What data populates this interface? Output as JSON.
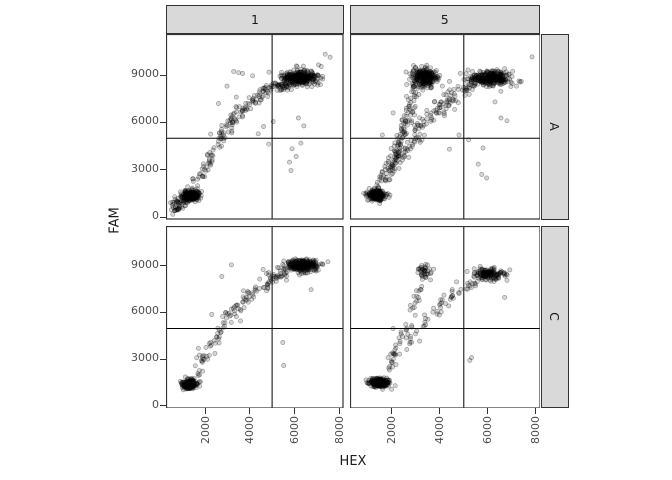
{
  "chart_data": {
    "type": "scatter",
    "title": "",
    "xlabel": "HEX",
    "ylabel": "FAM",
    "x_domain": [
      250,
      8200
    ],
    "y_domain": [
      -150,
      11600
    ],
    "x_ticks": [
      2000,
      4000,
      6000,
      8000
    ],
    "y_ticks": [
      0,
      3000,
      6000,
      9000
    ],
    "col_facets": [
      "1",
      "5"
    ],
    "row_facets": [
      "A",
      "C"
    ],
    "threshold_x": 5000,
    "threshold_y": 5000,
    "grid": "off",
    "legend": "none",
    "description": "ddPCR-style 2D amplitude scatter: FAM vs HEX fluorescence, faceted by well column (1,5) and row (A,C), with classification threshold crosshairs at HEX=5000 and FAM=5000",
    "panels": [
      {
        "col": "1",
        "row": "A",
        "seed": 11,
        "clusters": [
          {
            "cx": 1350,
            "cy": 1350,
            "sx": 170,
            "sy": 150,
            "n": 240
          },
          {
            "cx": 6250,
            "cy": 8850,
            "sx": 400,
            "sy": 230,
            "n": 320
          }
        ],
        "arcs": [
          {
            "path": [
              [
                560,
                520
              ],
              [
                900,
                900
              ],
              [
                1350,
                1500
              ],
              [
                2000,
                3200
              ],
              [
                2600,
                4800
              ],
              [
                3200,
                6100
              ],
              [
                3900,
                7100
              ],
              [
                4600,
                7900
              ],
              [
                5300,
                8350
              ],
              [
                5900,
                8650
              ]
            ],
            "n": 260,
            "jx": 120,
            "jy": 230
          }
        ],
        "outliers": [
          [
            3280,
            9230
          ],
          [
            3500,
            9150
          ],
          [
            3680,
            9100
          ],
          [
            4130,
            8950
          ],
          [
            2980,
            8300
          ],
          [
            7380,
            10320
          ],
          [
            7600,
            10130
          ],
          [
            5900,
            4330
          ],
          [
            6080,
            3840
          ],
          [
            5780,
            3480
          ],
          [
            6290,
            4680
          ],
          [
            5850,
            2950
          ],
          [
            6180,
            6280
          ],
          [
            6420,
            5780
          ],
          [
            4620,
            5740
          ],
          [
            4380,
            5280
          ],
          [
            4850,
            4620
          ],
          [
            5050,
            6050
          ],
          [
            2250,
            5260
          ],
          [
            2400,
            4400
          ],
          [
            3400,
            7600
          ],
          [
            2600,
            7200
          ]
        ]
      },
      {
        "col": "5",
        "row": "A",
        "seed": 22,
        "clusters": [
          {
            "cx": 1350,
            "cy": 1400,
            "sx": 170,
            "sy": 160,
            "n": 260
          },
          {
            "cx": 3350,
            "cy": 8850,
            "sx": 270,
            "sy": 280,
            "n": 260
          },
          {
            "cx": 6100,
            "cy": 8800,
            "sx": 420,
            "sy": 240,
            "n": 320
          }
        ],
        "arcs": [
          {
            "path": [
              [
                1500,
                1900
              ],
              [
                1900,
                3200
              ],
              [
                2200,
                4300
              ],
              [
                2450,
                5300
              ],
              [
                2650,
                6400
              ],
              [
                2850,
                7500
              ],
              [
                3100,
                8300
              ]
            ],
            "n": 120,
            "jx": 110,
            "jy": 250
          },
          {
            "path": [
              [
                1700,
                2300
              ],
              [
                2400,
                3900
              ],
              [
                3000,
                5100
              ],
              [
                3500,
                6200
              ],
              [
                4100,
                7100
              ],
              [
                4800,
                7900
              ],
              [
                5400,
                8350
              ]
            ],
            "n": 150,
            "jx": 140,
            "jy": 260
          }
        ],
        "outliers": [
          [
            7850,
            10150
          ],
          [
            3400,
            9500
          ],
          [
            2900,
            9600
          ],
          [
            5750,
            2700
          ],
          [
            5950,
            2480
          ],
          [
            5600,
            3350
          ],
          [
            5800,
            4380
          ],
          [
            6550,
            6280
          ],
          [
            6800,
            6100
          ],
          [
            4800,
            5200
          ],
          [
            5200,
            4900
          ],
          [
            4400,
            4300
          ],
          [
            6300,
            7300
          ],
          [
            7200,
            8300
          ],
          [
            7400,
            8600
          ],
          [
            1600,
            5200
          ],
          [
            2050,
            6600
          ],
          [
            4100,
            8300
          ],
          [
            4400,
            8600
          ],
          [
            3900,
            8900
          ],
          [
            6700,
            9400
          ]
        ]
      },
      {
        "col": "1",
        "row": "C",
        "seed": 33,
        "clusters": [
          {
            "cx": 1300,
            "cy": 1400,
            "sx": 160,
            "sy": 150,
            "n": 220
          },
          {
            "cx": 6350,
            "cy": 9050,
            "sx": 360,
            "sy": 190,
            "n": 300
          }
        ],
        "arcs": [
          {
            "path": [
              [
                1500,
                1900
              ],
              [
                2100,
                3300
              ],
              [
                2700,
                4800
              ],
              [
                3300,
                6100
              ],
              [
                3900,
                7000
              ],
              [
                4500,
                7700
              ],
              [
                5100,
                8250
              ],
              [
                5600,
                8500
              ]
            ],
            "n": 130,
            "jx": 130,
            "jy": 260
          }
        ],
        "outliers": [
          [
            3180,
            9100
          ],
          [
            2750,
            8350
          ],
          [
            5480,
            4100
          ],
          [
            5520,
            2620
          ],
          [
            6750,
            7500
          ],
          [
            4850,
            8600
          ],
          [
            2300,
            5900
          ],
          [
            5300,
            8900
          ],
          [
            4600,
            8800
          ]
        ]
      },
      {
        "col": "5",
        "row": "C",
        "seed": 44,
        "clusters": [
          {
            "cx": 1450,
            "cy": 1500,
            "sx": 210,
            "sy": 130,
            "n": 260
          },
          {
            "cx": 3400,
            "cy": 8600,
            "sx": 150,
            "sy": 240,
            "n": 40
          },
          {
            "cx": 6050,
            "cy": 8500,
            "sx": 320,
            "sy": 180,
            "n": 150
          }
        ],
        "arcs": [
          {
            "path": [
              [
                1700,
                2100
              ],
              [
                2100,
                3300
              ],
              [
                2500,
                4500
              ],
              [
                2750,
                5600
              ],
              [
                3000,
                6800
              ],
              [
                3250,
                7800
              ]
            ],
            "n": 45,
            "jx": 110,
            "jy": 230
          },
          {
            "path": [
              [
                2500,
                3700
              ],
              [
                3100,
                4900
              ],
              [
                3700,
                6000
              ],
              [
                4300,
                6900
              ],
              [
                4900,
                7500
              ],
              [
                5500,
                8000
              ]
            ],
            "n": 60,
            "jx": 140,
            "jy": 240
          }
        ],
        "outliers": [
          [
            5250,
            2950
          ],
          [
            5320,
            3120
          ],
          [
            3500,
            5600
          ],
          [
            6700,
            7000
          ],
          [
            6800,
            8100
          ],
          [
            2050,
            5000
          ],
          [
            4700,
            8000
          ],
          [
            5700,
            8300
          ]
        ]
      }
    ],
    "point_style": {
      "radius": 2.1,
      "fill_opacity": 0.16,
      "stroke_opacity": 0.35
    }
  },
  "style": {
    "background": "#ffffff",
    "panel_background": "#ffffff",
    "panel_border": "#333333",
    "strip_background": "#d9d9d9",
    "strip_border": "#333333",
    "strip_text": "#1a1a1a",
    "axis_text": "#4d4d4d",
    "axis_title": "#1a1a1a",
    "threshold_line": "#000000",
    "point_color": "#000000"
  }
}
